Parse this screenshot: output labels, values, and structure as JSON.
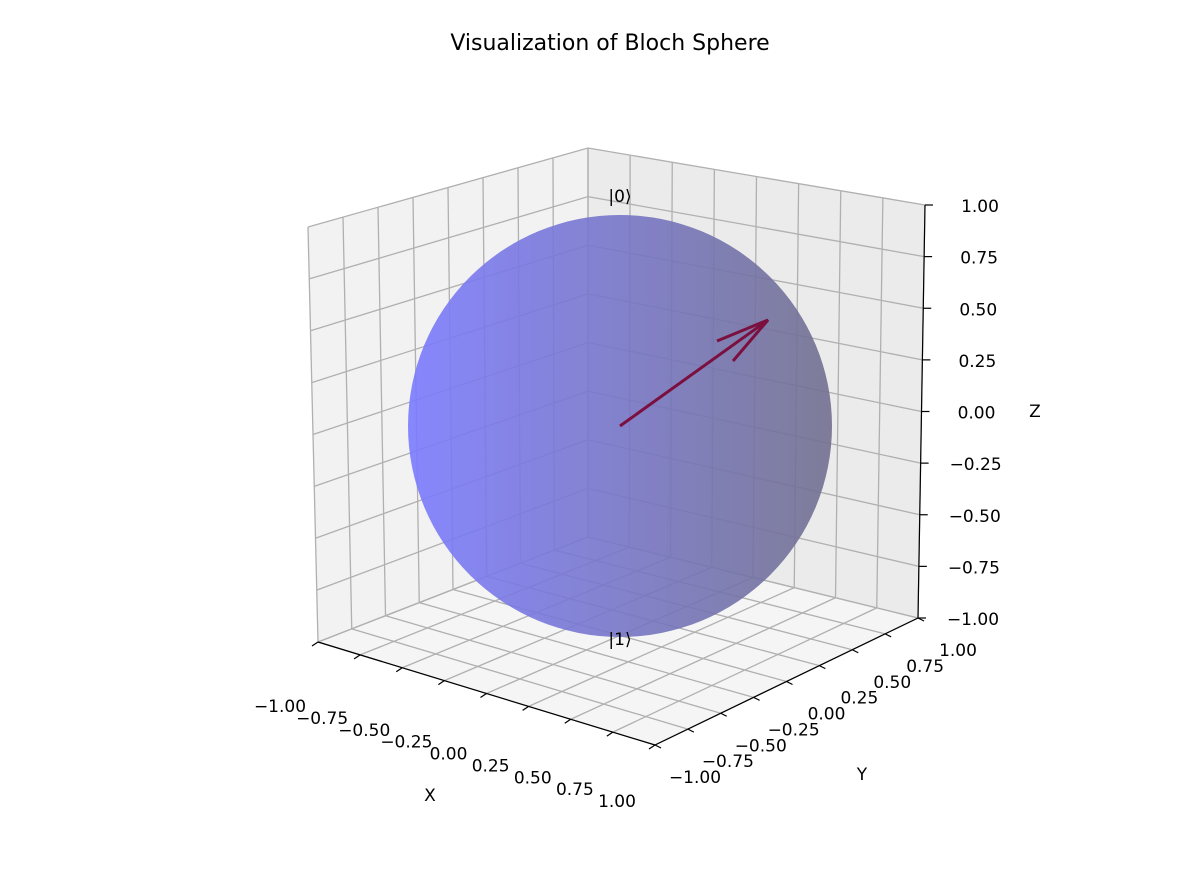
{
  "chart_data": {
    "type": "3d-surface-vector",
    "title": "Visualization of Bloch Sphere",
    "xlabel": "X",
    "ylabel": "Y",
    "zlabel": "Z",
    "xlim": [
      -1.0,
      1.0
    ],
    "ylim": [
      -1.0,
      1.0
    ],
    "zlim": [
      -1.0,
      1.0
    ],
    "x_ticks": [
      "−1.00",
      "−0.75",
      "−0.50",
      "−0.25",
      "0.00",
      "0.25",
      "0.50",
      "0.75",
      "1.00"
    ],
    "y_ticks": [
      "−1.00",
      "−0.75",
      "−0.50",
      "−0.25",
      "0.00",
      "0.25",
      "0.50",
      "0.75",
      "1.00"
    ],
    "z_ticks": [
      "1.00",
      "0.75",
      "0.50",
      "0.25",
      "0.00",
      "−0.25",
      "−0.50",
      "−0.75",
      "−1.00"
    ],
    "grid": true,
    "sphere": {
      "radius": 1.0,
      "color": "#5b5bf2",
      "alpha": 0.55
    },
    "state_vector": {
      "origin": [
        0,
        0,
        0
      ],
      "direction": [
        0.36,
        0.79,
        0.5
      ],
      "color": "#7b1040"
    },
    "annotations": [
      {
        "text": "|0⟩",
        "position": [
          0,
          0,
          1
        ]
      },
      {
        "text": "|1⟩",
        "position": [
          0,
          0,
          -1
        ]
      }
    ]
  }
}
